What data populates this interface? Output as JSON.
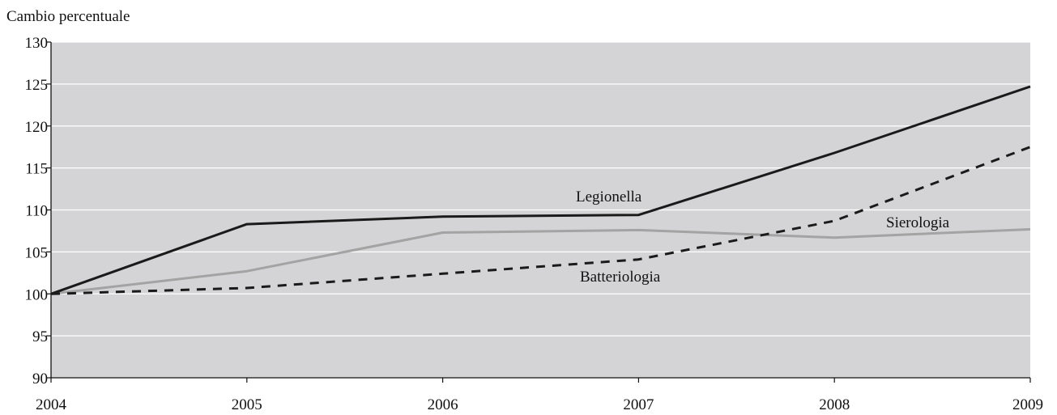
{
  "chart_data": {
    "type": "line",
    "title": "",
    "ylabel": "Cambio percentuale",
    "xlabel": "",
    "x": [
      "2004",
      "2005",
      "2006",
      "2007",
      "2008",
      "2009"
    ],
    "ylim": [
      90,
      130
    ],
    "yticks": [
      90,
      95,
      100,
      105,
      110,
      115,
      120,
      125,
      130
    ],
    "grid": true,
    "background_color": "#d4d4d6",
    "grid_color": "#ffffff",
    "series": [
      {
        "name": "Legionella",
        "values": [
          100,
          108.3,
          109.2,
          109.4,
          116.8,
          124.7
        ],
        "color": "#1a1a1a",
        "style": "solid"
      },
      {
        "name": "Batteriologia",
        "values": [
          100,
          100.7,
          102.4,
          104.1,
          108.7,
          117.5
        ],
        "color": "#1a1a1a",
        "style": "dashed"
      },
      {
        "name": "Sierologia",
        "values": [
          100,
          102.7,
          107.3,
          107.6,
          106.7,
          107.7
        ],
        "color": "#a3a3a3",
        "style": "solid"
      }
    ]
  }
}
